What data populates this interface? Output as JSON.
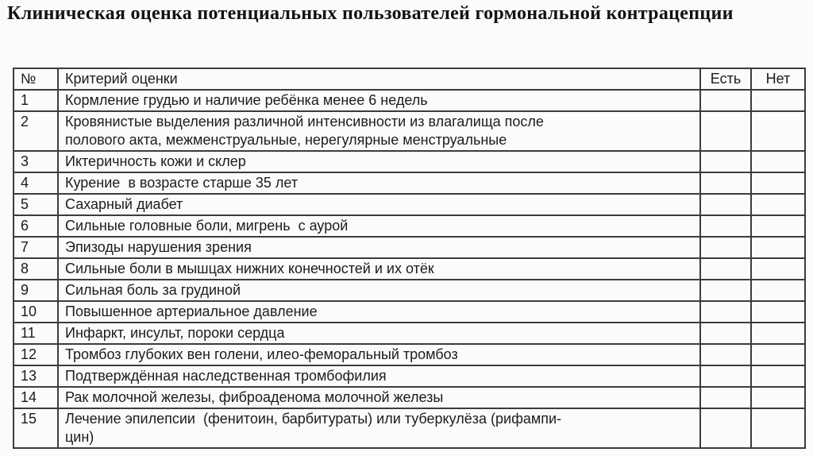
{
  "title": "Клиническая оценка потенциальных пользователей гормональной контрацепции",
  "table": {
    "headers": {
      "num": "№",
      "criterion": "Критерий оценки",
      "yes": "Есть",
      "no": "Нет"
    },
    "rows": [
      {
        "num": "1",
        "criterion": "Кормление грудью и наличие ребёнка менее 6 недель",
        "yes": "",
        "no": ""
      },
      {
        "num": "2",
        "criterion": "Кровянистые выделения различной интенсивности из влагалища после\nполового акта, межменструальные, нерегулярные менструальные",
        "yes": "",
        "no": ""
      },
      {
        "num": "3",
        "criterion": "Иктеричность кожи и склер",
        "yes": "",
        "no": ""
      },
      {
        "num": "4",
        "criterion": "Курение  в возрасте старше 35 лет",
        "yes": "",
        "no": ""
      },
      {
        "num": "5",
        "criterion": "Сахарный диабет",
        "yes": "",
        "no": ""
      },
      {
        "num": "6",
        "criterion": "Сильные головные боли, мигрень  с аурой",
        "yes": "",
        "no": ""
      },
      {
        "num": "7",
        "criterion": "Эпизоды нарушения зрения",
        "yes": "",
        "no": ""
      },
      {
        "num": "8",
        "criterion": "Сильные боли в мышцах нижних конечностей и их отёк",
        "yes": "",
        "no": ""
      },
      {
        "num": "9",
        "criterion": "Сильная боль за грудиной",
        "yes": "",
        "no": ""
      },
      {
        "num": "10",
        "criterion": "Повышенное артериальное давление",
        "yes": "",
        "no": ""
      },
      {
        "num": "11",
        "criterion": "Инфаркт, инсульт, пороки сердца",
        "yes": "",
        "no": ""
      },
      {
        "num": "12",
        "criterion": "Тромбоз глубоких вен голени, илео-феморальный тромбоз",
        "yes": "",
        "no": ""
      },
      {
        "num": "13",
        "criterion": "Подтверждённая наследственная тромбофилия",
        "yes": "",
        "no": ""
      },
      {
        "num": "14",
        "criterion": "Рак молочной железы, фиброаденома молочной железы",
        "yes": "",
        "no": ""
      },
      {
        "num": "15",
        "criterion": "Лечение эпилепсии  (фенитоин, барбитураты) или туберкулёза (рифампи-\nцин)",
        "yes": "",
        "no": ""
      }
    ]
  },
  "colors": {
    "text": "#1c1c1c",
    "border": "#3c3c3c",
    "background": "#fbfbfb"
  }
}
